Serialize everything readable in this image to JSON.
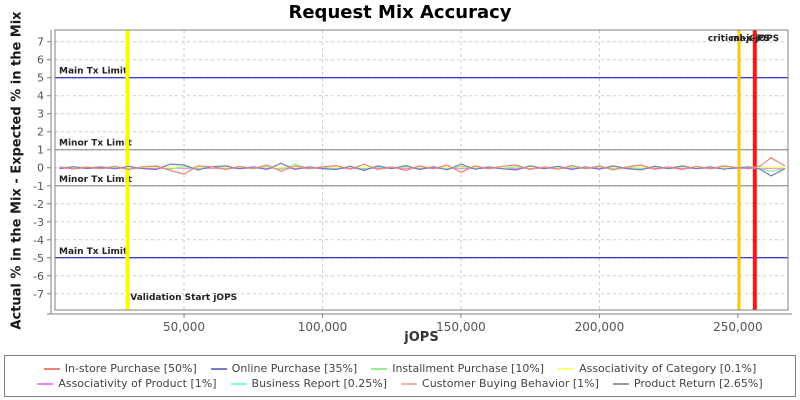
{
  "chart": {
    "title": "Request Mix Accuracy",
    "xlabel": "jOPS",
    "ylabel": "Actual % in the Mix - Expected % in the Mix"
  },
  "chart_data": {
    "type": "line",
    "title": "Request Mix Accuracy",
    "xlabel": "jOPS",
    "ylabel": "Actual % in the Mix - Expected % in the Mix",
    "grid": true,
    "legend_position": "bottom",
    "xlim": [
      3400,
      268100
    ],
    "ylim": [
      -7.9,
      7.65
    ],
    "x_ticks": [
      {
        "value": 50000,
        "label": "50,000"
      },
      {
        "value": 100000,
        "label": "100,000"
      },
      {
        "value": 150000,
        "label": "150,000"
      },
      {
        "value": 200000,
        "label": "200,000"
      },
      {
        "value": 250000,
        "label": "250,000"
      }
    ],
    "y_ticks": [
      {
        "value": -7,
        "label": "-7"
      },
      {
        "value": -6,
        "label": "-6"
      },
      {
        "value": -5,
        "label": "-5"
      },
      {
        "value": -4,
        "label": "-4"
      },
      {
        "value": -3,
        "label": "-3"
      },
      {
        "value": -2,
        "label": "-2"
      },
      {
        "value": -1,
        "label": "-1"
      },
      {
        "value": 0,
        "label": "0"
      },
      {
        "value": 1,
        "label": "1"
      },
      {
        "value": 2,
        "label": "2"
      },
      {
        "value": 3,
        "label": "3"
      },
      {
        "value": 4,
        "label": "4"
      },
      {
        "value": 5,
        "label": "5"
      },
      {
        "value": 6,
        "label": "6"
      },
      {
        "value": 7,
        "label": "7"
      }
    ],
    "limit_lines": [
      {
        "label": "Main Tx Limit",
        "y": 5,
        "color": "#0000B8"
      },
      {
        "label": "Minor Tx Limit",
        "y": 1,
        "color": "#808080"
      },
      {
        "label": "Minor Tx Limit",
        "y": -1,
        "color": "#808080"
      },
      {
        "label": "Main Tx Limit",
        "y": -5,
        "color": "#0000B8"
      }
    ],
    "event_lines": [
      {
        "label": "Validation Start jOPS",
        "x": 29500,
        "color": "#FFFF00",
        "width": 4,
        "label_pos": "bottom"
      },
      {
        "label": "critical-jOPS",
        "x": 250400,
        "color": "#FFC800",
        "width": 3,
        "label_pos": "top"
      },
      {
        "label": "max-jOPS",
        "x": 256100,
        "color": "#FF1414",
        "width": 4,
        "label_pos": "top"
      }
    ],
    "x": [
      5000,
      10000,
      15000,
      20000,
      25000,
      30000,
      35000,
      40000,
      45000,
      50000,
      55000,
      60000,
      65000,
      70000,
      75000,
      80000,
      85000,
      90000,
      95000,
      100000,
      105000,
      110000,
      115000,
      120000,
      125000,
      130000,
      135000,
      140000,
      145000,
      150000,
      155000,
      160000,
      165000,
      170000,
      175000,
      180000,
      185000,
      190000,
      195000,
      200000,
      205000,
      210000,
      215000,
      220000,
      225000,
      230000,
      235000,
      240000,
      245000,
      250000,
      254000,
      258000,
      262000,
      267000
    ],
    "series": [
      {
        "name": "In-store Purchase [50%]",
        "color": "#F08080",
        "values": [
          0.05,
          -0.08,
          0.03,
          -0.05,
          0.08,
          -0.1,
          0.05,
          0.1,
          -0.15,
          -0.35,
          0.1,
          0.05,
          -0.1,
          0.08,
          -0.05,
          0.15,
          -0.2,
          0.1,
          -0.05,
          0.05,
          0.12,
          -0.08,
          0.2,
          -0.1,
          0.05,
          -0.15,
          0.1,
          -0.05,
          0.15,
          -0.25,
          0.1,
          -0.05,
          0.08,
          0.15,
          -0.1,
          0.05,
          -0.08,
          0.12,
          -0.05,
          0.1,
          -0.12,
          0.05,
          0.15,
          -0.08,
          0.05,
          -0.1,
          0.08,
          -0.05,
          0.1,
          0.0,
          -0.05,
          0.1,
          0.55,
          0.1
        ]
      },
      {
        "name": "Online Purchase [35%]",
        "color": "#7878CE",
        "values": [
          -0.05,
          0.06,
          -0.04,
          0.05,
          -0.06,
          0.08,
          -0.05,
          -0.1,
          0.2,
          0.15,
          -0.12,
          0.05,
          0.1,
          -0.06,
          0.05,
          -0.1,
          0.25,
          -0.1,
          0.05,
          -0.05,
          -0.1,
          0.08,
          -0.15,
          0.1,
          -0.05,
          0.12,
          -0.1,
          0.05,
          -0.12,
          0.2,
          -0.08,
          0.05,
          -0.06,
          -0.12,
          0.1,
          -0.05,
          0.08,
          -0.1,
          0.05,
          -0.08,
          0.1,
          -0.05,
          -0.12,
          0.08,
          -0.05,
          0.1,
          -0.06,
          0.05,
          -0.08,
          0.0,
          0.05,
          -0.08,
          -0.45,
          -0.05
        ]
      },
      {
        "name": "Installment Purchase [10%]",
        "color": "#90EE90",
        "values": [
          0.02,
          -0.03,
          0.04,
          -0.02,
          0.03,
          -0.05,
          0.04,
          0.06,
          -0.08,
          0.05,
          -0.06,
          0.08,
          -0.05,
          0.03,
          -0.04,
          0.06,
          -0.1,
          0.2,
          -0.05,
          0.03,
          -0.06,
          0.05,
          -0.08,
          0.04,
          -0.03,
          0.06,
          -0.05,
          0.03,
          -0.06,
          0.08,
          -0.04,
          0.03,
          -0.05,
          0.06,
          -0.08,
          0.04,
          -0.03,
          0.05,
          -0.06,
          0.04,
          -0.05,
          0.03,
          -0.06,
          0.05,
          -0.04,
          0.06,
          -0.03,
          0.04,
          -0.05,
          0.0,
          0.03,
          -0.04,
          -0.2,
          -0.05
        ]
      },
      {
        "name": "Associativity of Category [0.1%]",
        "color": "#FFFF77",
        "constant": 0.02
      },
      {
        "name": "Associativity of Product [1%]",
        "color": "#EE82EE",
        "constant": -0.02
      },
      {
        "name": "Business Report [0.25%]",
        "color": "#7FFFD4",
        "constant": 0.03
      },
      {
        "name": "Customer Buying Behavior [1%]",
        "color": "#FFAFA5",
        "constant": -0.03
      },
      {
        "name": "Product Return [2.65%]",
        "color": "#999999",
        "constant": 0.01
      }
    ]
  },
  "style": {
    "frame_color": "#808080",
    "grid_color": "#CCCCCC",
    "tick_label_color": "#555555",
    "marker_label_color": "#222222"
  }
}
